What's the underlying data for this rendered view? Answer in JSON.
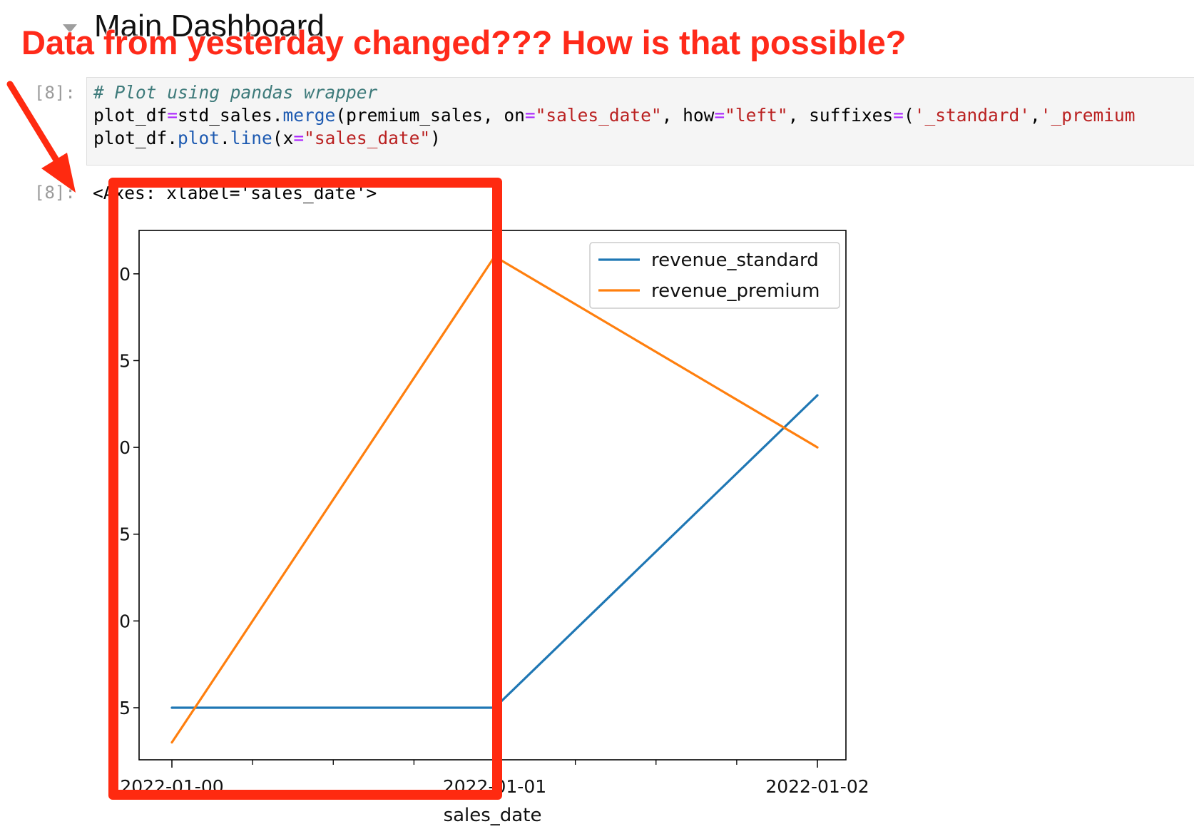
{
  "notebook": {
    "heading": "Main Dashboard",
    "annotation": "Data from yesterday changed??? How is that possible?",
    "input_prompt": "[8]:",
    "output_prompt": "[8]:",
    "output_repr": "<Axes: xlabel='sales_date'>",
    "code": {
      "comment": "# Plot using pandas wrapper",
      "line2": {
        "a": "plot_df",
        "b": "=",
        "c": "std_sales.",
        "d": "merge",
        "e": "(premium_sales, on",
        "f": "=",
        "g": "\"sales_date\"",
        "h": ", how",
        "i": "=",
        "j": "\"left\"",
        "k": ", suffixes",
        "l": "=",
        "m": "(",
        "n": "'_standard'",
        "o": ",",
        "p": "'_premium"
      },
      "line3": {
        "a": "plot_df.",
        "b": "plot",
        "c": ".",
        "d": "line",
        "e": "(x",
        "f": "=",
        "g": "\"sales_date\"",
        "h": ")"
      }
    }
  },
  "colors": {
    "annotation_red": "#ff2a1a",
    "series_standard": "#1f77b4",
    "series_premium": "#ff7f0e"
  },
  "chart_data": {
    "type": "line",
    "categories": [
      "2022-01-00",
      "2022-01-01",
      "2022-01-02"
    ],
    "series": [
      {
        "name": "revenue_standard",
        "values": [
          5,
          5,
          23
        ]
      },
      {
        "name": "revenue_premium",
        "values": [
          3,
          31,
          20
        ]
      }
    ],
    "xlabel": "sales_date",
    "ylabel": "",
    "ylim": [
      2,
      32.5
    ],
    "yticks": [
      5,
      10,
      15,
      20,
      25,
      30
    ],
    "ytick_labels": [
      "5",
      "10",
      "15",
      "20",
      "25",
      "30"
    ],
    "grid": false,
    "legend": "upper right"
  }
}
